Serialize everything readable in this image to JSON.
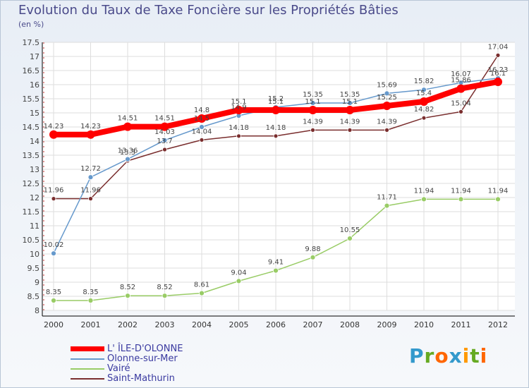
{
  "chart_data": {
    "type": "line",
    "title": "Evolution du Taux de Taxe Foncière sur les Propriétés Bâties",
    "ylabel": "(en %)",
    "xlabel": "",
    "categories": [
      "2000",
      "2001",
      "2002",
      "2003",
      "2004",
      "2005",
      "2006",
      "2007",
      "2008",
      "2009",
      "2010",
      "2011",
      "2012"
    ],
    "ylim": [
      8,
      17.5
    ],
    "yticks": [
      "8",
      "8.5",
      "9",
      "9.5",
      "10",
      "10.5",
      "11",
      "11.5",
      "12",
      "12.5",
      "13",
      "13.5",
      "14",
      "14.5",
      "15",
      "15.5",
      "16",
      "16.5",
      "17",
      "17.5"
    ],
    "series": [
      {
        "name": "L' ÎLE-D'OLONNE",
        "color": "#ff0000",
        "values": [
          14.23,
          14.23,
          14.51,
          14.51,
          14.8,
          15.1,
          15.1,
          15.1,
          15.1,
          15.25,
          15.4,
          15.86,
          16.1
        ],
        "labels": [
          "14.23",
          "14.23",
          "14.51",
          "14.51",
          "14.8",
          "15.1",
          "15.1",
          "15.1",
          "15.1",
          "15.25",
          "15.4",
          "15.86",
          "16.1"
        ]
      },
      {
        "name": "Olonne-sur-Mer",
        "color": "#6699cc",
        "values": [
          10.02,
          12.72,
          13.36,
          14.03,
          14.5,
          14.9,
          15.2,
          15.35,
          15.35,
          15.69,
          15.82,
          16.07,
          16.23
        ],
        "labels": [
          "10.02",
          "12.72",
          "13.36",
          "14.03",
          "14.5",
          "14.9",
          "15.2",
          "15.35",
          "15.35",
          "15.69",
          "15.82",
          "16.07",
          "16.23"
        ]
      },
      {
        "name": "Vairé",
        "color": "#99cc66",
        "values": [
          8.35,
          8.35,
          8.52,
          8.52,
          8.61,
          9.04,
          9.41,
          9.88,
          10.55,
          11.71,
          11.94,
          11.94,
          11.94
        ],
        "labels": [
          "8.35",
          "8.35",
          "8.52",
          "8.52",
          "8.61",
          "9.04",
          "9.41",
          "9.88",
          "10.55",
          "11.71",
          "11.94",
          "11.94",
          "11.94"
        ]
      },
      {
        "name": "Saint-Mathurin",
        "color": "#7a2e2e",
        "values": [
          11.96,
          11.96,
          13.3,
          13.7,
          14.04,
          14.18,
          14.18,
          14.39,
          14.39,
          14.39,
          14.82,
          15.04,
          17.04
        ],
        "labels": [
          "11.96",
          "11.96",
          "13.3",
          "13.7",
          "14.04",
          "14.18",
          "14.18",
          "14.39",
          "14.39",
          "14.39",
          "14.82",
          "15.04",
          "17.04"
        ]
      }
    ]
  },
  "header": {
    "title": "Evolution du Taux de Taxe Foncière sur les Propriétés Bâties",
    "unit": "(en %)"
  },
  "legend": {
    "items": [
      "L' ÎLE-D'OLONNE",
      "Olonne-sur-Mer",
      "Vairé",
      "Saint-Mathurin"
    ]
  },
  "logo": {
    "letters": [
      "P",
      "r",
      "o",
      "x",
      "i",
      "t",
      "i"
    ],
    "colors": [
      "#3399cc",
      "#66aa22",
      "#ff6600",
      "#3399cc",
      "#ff9900",
      "#66aa22",
      "#ff6600"
    ]
  }
}
